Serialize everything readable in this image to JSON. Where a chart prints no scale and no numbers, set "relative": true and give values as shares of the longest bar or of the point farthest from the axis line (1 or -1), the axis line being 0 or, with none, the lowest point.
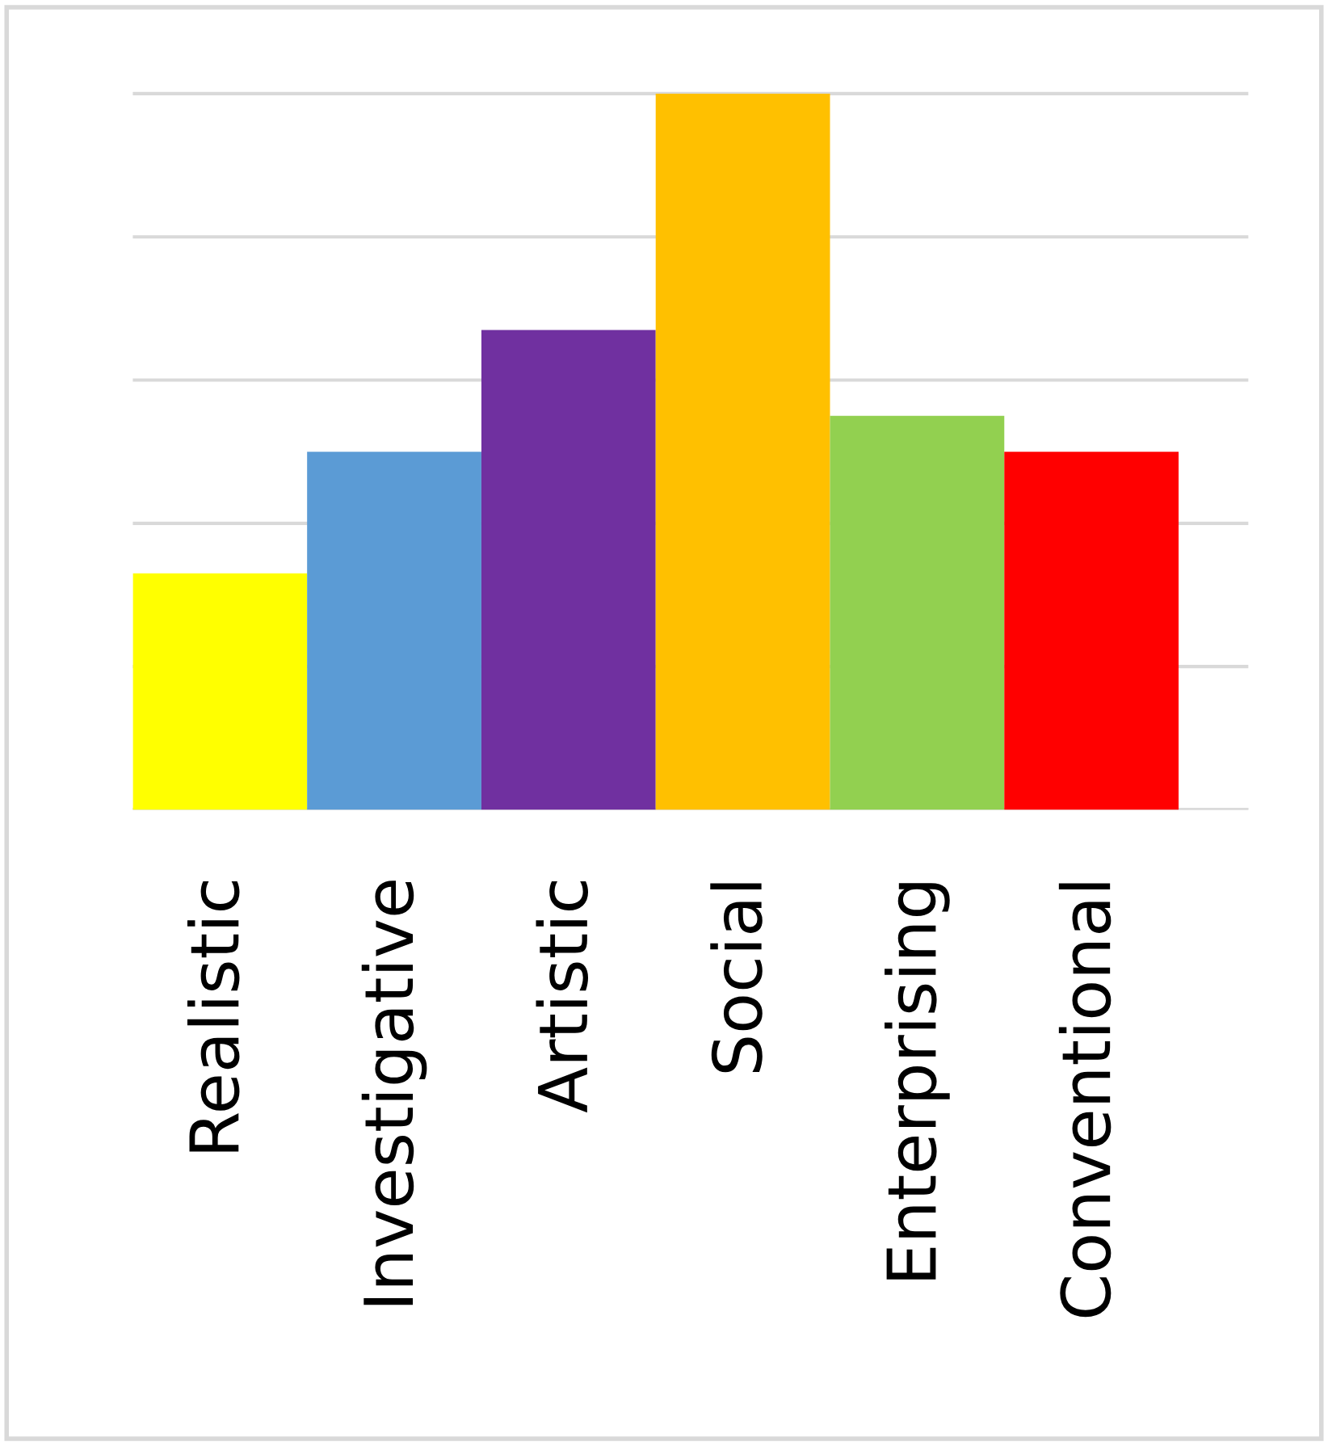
{
  "chart_data": {
    "type": "bar",
    "relative": true,
    "grid": "y",
    "categories": [
      "Realistic",
      "Investigative",
      "Artistic",
      "Social",
      "Enterprising",
      "Conventional"
    ],
    "values": [
      0.33,
      0.5,
      0.67,
      1,
      0.55,
      0.5
    ],
    "colors": [
      "#ffff00",
      "#5b9bd5",
      "#7030a0",
      "#ffc000",
      "#92d050",
      "#ff0000"
    ]
  }
}
